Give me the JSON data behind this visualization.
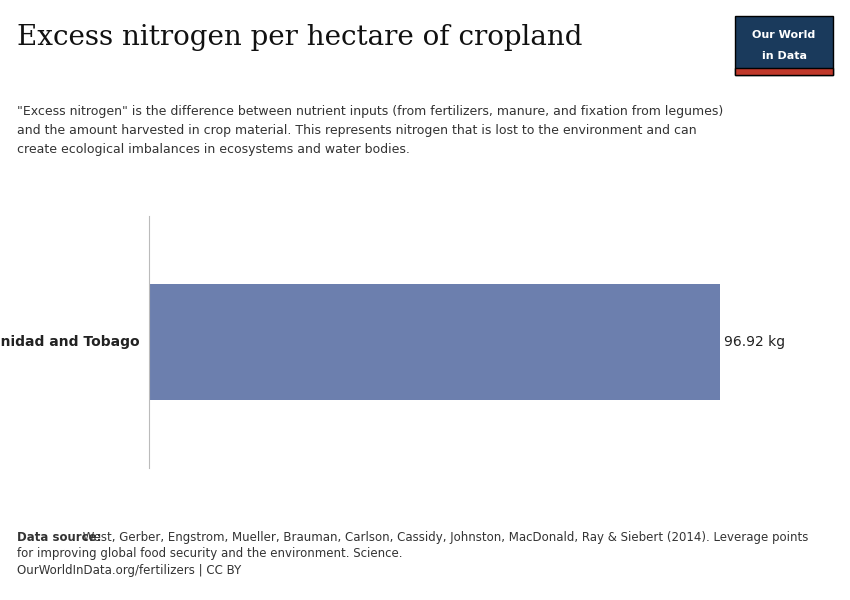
{
  "title": "Excess nitrogen per hectare of cropland",
  "subtitle_line1": "\"Excess nitrogen\" is the difference between nutrient inputs (from fertilizers, manure, and fixation from legumes)",
  "subtitle_line2": "and the amount harvested in crop material. This represents nitrogen that is lost to the environment and can",
  "subtitle_line3": "create ecological imbalances in ecosystems and water bodies.",
  "country": "Trinidad and Tobago",
  "value": 96.92,
  "value_label": "96.92 kg",
  "bar_color": "#6c7fae",
  "background_color": "#ffffff",
  "data_source_bold": "Data source:",
  "data_source_rest": " West, Gerber, Engstrom, Mueller, Brauman, Carlson, Cassidy, Johnston, MacDonald, Ray & Siebert (2014). Leverage points",
  "data_source_line2": "for improving global food security and the environment. Science.",
  "license": "OurWorldInData.org/fertilizers | CC BY",
  "owid_box_bg": "#1a3a5c",
  "owid_box_red": "#c0392b"
}
